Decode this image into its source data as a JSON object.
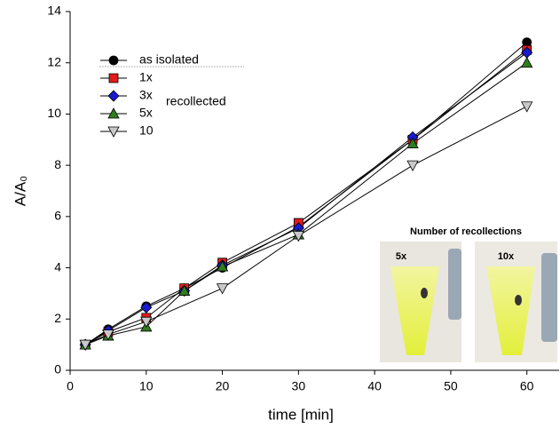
{
  "chart_data": {
    "type": "line",
    "x_label": "time [min]",
    "y_label": "A/A₀",
    "x": [
      2,
      5,
      10,
      15,
      20,
      30,
      45,
      60
    ],
    "series": [
      {
        "name": "as isolated",
        "color": "#000000",
        "marker": "circle",
        "values": [
          1,
          1.6,
          2.5,
          3.2,
          4.0,
          5.6,
          9.0,
          12.8
        ]
      },
      {
        "name": "1x",
        "color": "#e01b1b",
        "marker": "square",
        "values": [
          1,
          1.5,
          2.05,
          3.2,
          4.2,
          5.75,
          9.0,
          12.5
        ]
      },
      {
        "name": "3x",
        "color": "#1a1ad0",
        "marker": "diamond",
        "values": [
          1,
          1.55,
          2.45,
          3.1,
          4.1,
          5.55,
          9.1,
          12.4
        ]
      },
      {
        "name": "5x",
        "color": "#2e7d1e",
        "marker": "triangle",
        "values": [
          1,
          1.35,
          1.7,
          3.1,
          4.05,
          5.3,
          8.85,
          12.0
        ]
      },
      {
        "name": "10",
        "color": "#c8c8c8",
        "marker": "triangle-down",
        "x": [
          2,
          5,
          10,
          20,
          30,
          45,
          60
        ],
        "values": [
          1,
          1.4,
          1.9,
          3.2,
          5.25,
          8.0,
          10.3
        ]
      }
    ],
    "legend_note": "recollected",
    "xlim": [
      0,
      64
    ],
    "xticks": [
      0,
      10,
      20,
      30,
      40,
      50,
      60
    ],
    "ylim": [
      0,
      14
    ],
    "yticks": [
      0,
      2,
      4,
      6,
      8,
      10,
      12,
      14
    ],
    "inset": {
      "title": "Number of recollections",
      "labels": [
        "5x",
        "10x"
      ]
    }
  }
}
